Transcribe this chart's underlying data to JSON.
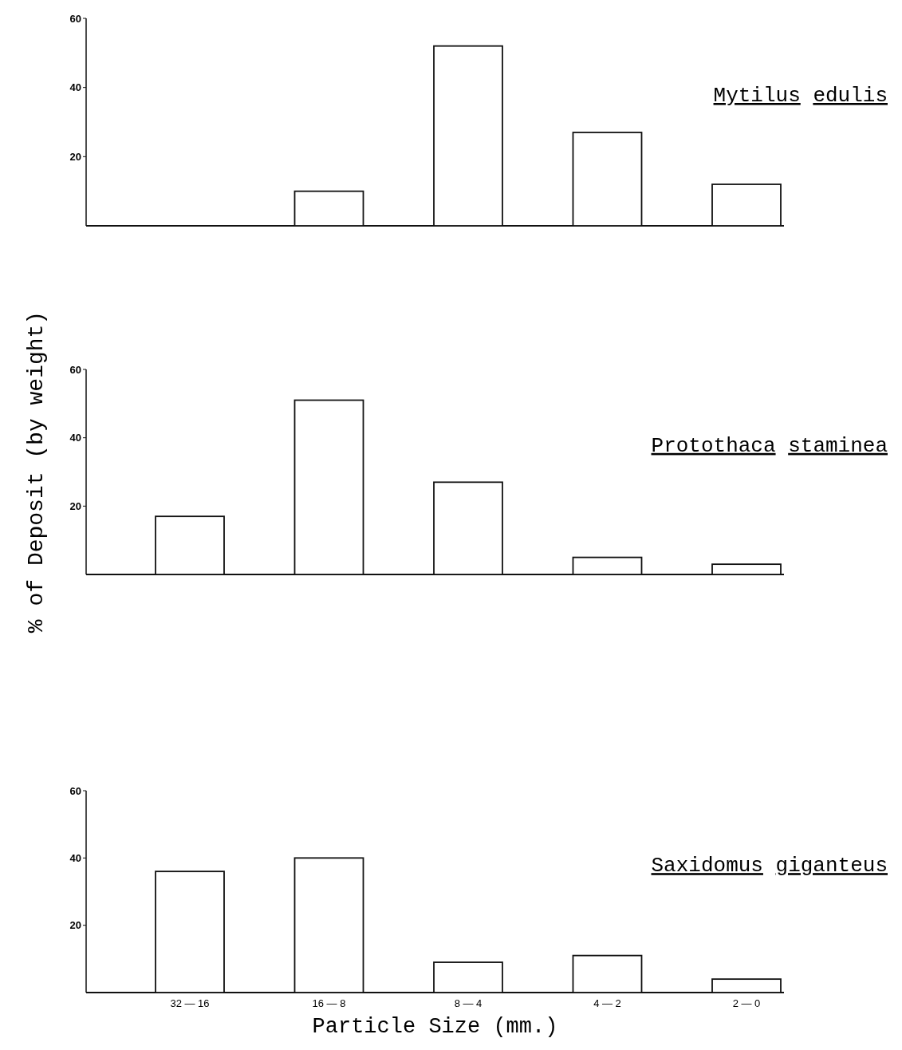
{
  "chart_data": [
    {
      "type": "bar",
      "title": "Mytilus edulis",
      "categories": [
        null,
        null,
        null,
        null,
        null
      ],
      "values": [
        0,
        10,
        52,
        27,
        12
      ],
      "color": "#ffffff",
      "ylim": [
        0,
        60
      ],
      "yticks": [
        20,
        40,
        60
      ]
    },
    {
      "type": "bar",
      "title": "Protothaca staminea",
      "ylabel": "% of Deposit (by weight)",
      "categories": [
        null,
        null,
        null,
        null,
        null
      ],
      "values": [
        17,
        51,
        27,
        5,
        3
      ],
      "color": "#ffffff",
      "ylim": [
        0,
        60
      ],
      "yticks": [
        20,
        40,
        60
      ]
    },
    {
      "type": "bar",
      "title": "Saxidomus giganteus",
      "xlabel": "Particle Size (mm.)",
      "categories": [
        "32 — 16",
        "16 — 8",
        "8 — 4",
        "4 — 2",
        "2 — 0"
      ],
      "values": [
        36,
        40,
        9,
        11,
        4
      ],
      "color": "#ffffff",
      "ylim": [
        0,
        60
      ],
      "yticks": [
        20,
        40,
        60
      ]
    }
  ]
}
